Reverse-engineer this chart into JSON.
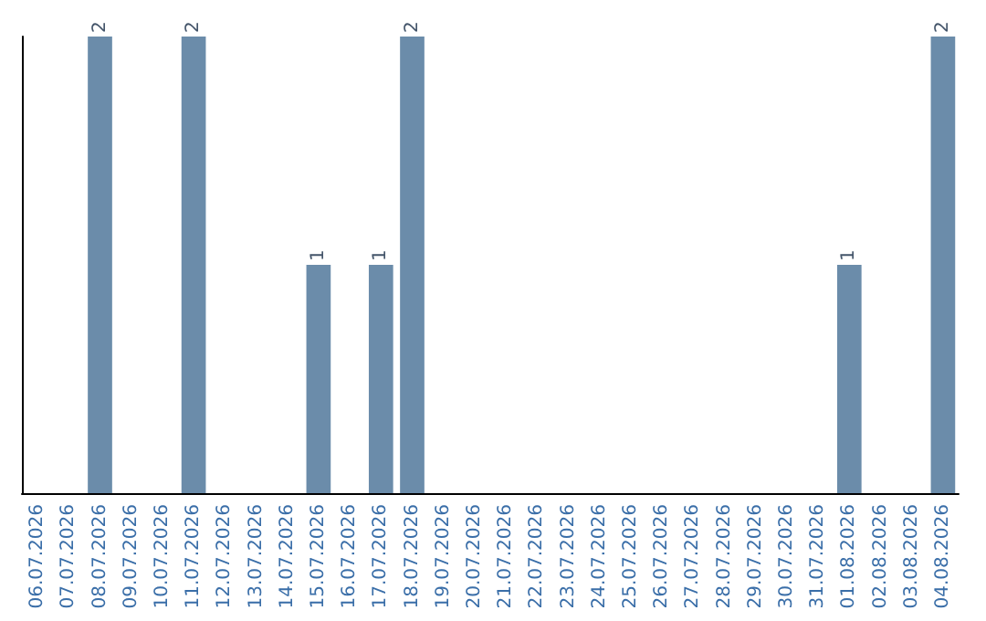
{
  "chart_data": {
    "type": "bar",
    "categories": [
      "06.07.2026",
      "07.07.2026",
      "08.07.2026",
      "09.07.2026",
      "10.07.2026",
      "11.07.2026",
      "12.07.2026",
      "13.07.2026",
      "14.07.2026",
      "15.07.2026",
      "16.07.2026",
      "17.07.2026",
      "18.07.2026",
      "19.07.2026",
      "20.07.2026",
      "21.07.2026",
      "22.07.2026",
      "23.07.2026",
      "24.07.2026",
      "25.07.2026",
      "26.07.2026",
      "27.07.2026",
      "28.07.2026",
      "29.07.2026",
      "30.07.2026",
      "31.07.2026",
      "01.08.2026",
      "02.08.2026",
      "03.08.2026",
      "04.08.2026"
    ],
    "values": [
      0,
      0,
      2,
      0,
      0,
      2,
      0,
      0,
      0,
      1,
      0,
      1,
      2,
      0,
      0,
      0,
      0,
      0,
      0,
      0,
      0,
      0,
      0,
      0,
      0,
      0,
      1,
      0,
      0,
      2
    ],
    "value_labels": [
      null,
      null,
      "2",
      null,
      null,
      "2",
      null,
      null,
      null,
      "1",
      null,
      "1",
      "2",
      null,
      null,
      null,
      null,
      null,
      null,
      null,
      null,
      null,
      null,
      null,
      null,
      null,
      "1",
      null,
      null,
      "2"
    ],
    "color": "#6b8caa",
    "grid": false,
    "tick_labels": "x"
  }
}
